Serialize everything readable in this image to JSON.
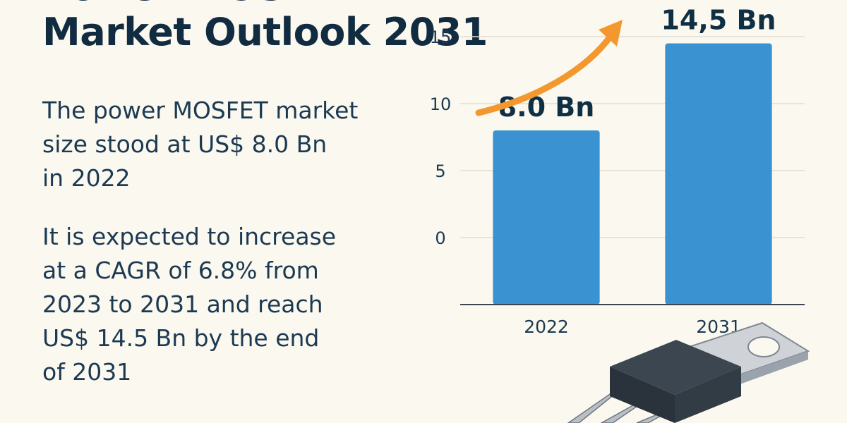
{
  "title": {
    "line1": "Power MOSFET",
    "line2": "Market Outlook 2031"
  },
  "paragraph1": {
    "lines": [
      "The power MOSFET market",
      "size stood at US$ 8.0 Bn",
      "in 2022"
    ]
  },
  "paragraph2": {
    "lines": [
      "It is expected to increase",
      "at a CAGR of 6.8% from",
      "2023 to 2031 and reach",
      "US$ 14.5 Bn by the end",
      "of 2031"
    ]
  },
  "colors": {
    "bar": "#3a93d0",
    "arrow": "#f3982e",
    "background": "#fbf8ef",
    "text": "#112b40",
    "grid": "#e2ddd2"
  },
  "icons": [
    "trend-arrow-icon",
    "mosfet-transistor-icon"
  ],
  "chart_data": {
    "type": "bar",
    "categories": [
      "2022",
      "2031"
    ],
    "values": [
      8.0,
      14.5
    ],
    "data_labels": [
      "8.0 Bn",
      "14,5 Bn"
    ],
    "yticks": [
      0,
      5,
      10,
      15
    ],
    "ylim": [
      -5,
      17
    ],
    "grid": true,
    "title": "",
    "xlabel": "",
    "ylabel": ""
  }
}
